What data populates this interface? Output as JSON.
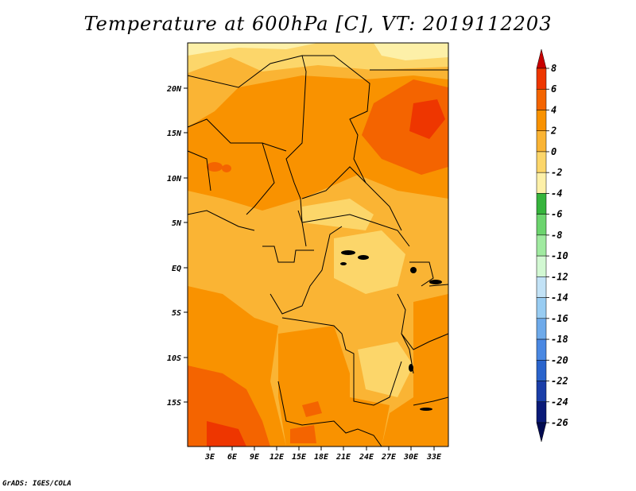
{
  "title": "Temperature at 600hPa [C], VT: 2019112203",
  "credit": "GrADS: IGES/COLA",
  "map": {
    "lat_ticks": [
      "20N",
      "15N",
      "10N",
      "5N",
      "EQ",
      "5S",
      "10S",
      "15S"
    ],
    "lon_ticks": [
      "3E",
      "6E",
      "9E",
      "12E",
      "15E",
      "18E",
      "21E",
      "24E",
      "27E",
      "30E",
      "33E"
    ]
  },
  "colorbar": {
    "levels": [
      "8",
      "6",
      "4",
      "2",
      "0",
      "-2",
      "-4",
      "-6",
      "-8",
      "-10",
      "-12",
      "-14",
      "-16",
      "-18",
      "-20",
      "-22",
      "-24",
      "-26"
    ],
    "colors": [
      "#c80000",
      "#ee3600",
      "#f46400",
      "#f99200",
      "#fab434",
      "#fcd66a",
      "#fdf0a8",
      "#36b43c",
      "#6cd46e",
      "#a0eaa0",
      "#d2f8d2",
      "#c2e2f6",
      "#98ccf2",
      "#6eaaea",
      "#4a88e2",
      "#2a64cc",
      "#1a3ea8",
      "#0a1a78",
      "#000a50"
    ]
  }
}
